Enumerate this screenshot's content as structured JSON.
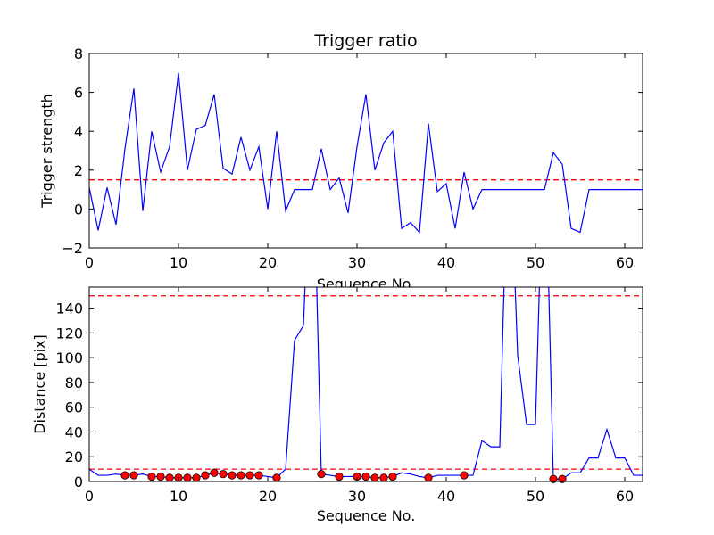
{
  "chart_data": [
    {
      "type": "line",
      "title": "Trigger ratio",
      "xlabel": "Sequence No.",
      "ylabel": "Trigger strength",
      "xlim": [
        0,
        62
      ],
      "ylim": [
        -2,
        8
      ],
      "xticks": [
        0,
        10,
        20,
        30,
        40,
        50,
        60
      ],
      "yticks": [
        -2,
        0,
        2,
        4,
        6,
        8
      ],
      "threshold": 1.5,
      "threshold_color": "#ff0000",
      "series": [
        {
          "color": "#0000ff",
          "x": [
            0,
            1,
            2,
            3,
            4,
            5,
            6,
            7,
            8,
            9,
            10,
            11,
            12,
            13,
            14,
            15,
            16,
            17,
            18,
            19,
            20,
            21,
            22,
            23,
            24,
            25,
            26,
            27,
            28,
            29,
            30,
            31,
            32,
            33,
            34,
            35,
            36,
            37,
            38,
            39,
            40,
            41,
            42,
            43,
            44,
            45,
            46,
            47,
            48,
            49,
            50,
            51,
            52,
            53,
            54,
            55,
            56,
            57,
            58,
            59,
            60,
            61,
            62
          ],
          "y": [
            1.1,
            -1.1,
            1.1,
            -0.8,
            3.1,
            6.2,
            -0.1,
            4.0,
            1.9,
            3.2,
            7.0,
            2.0,
            4.1,
            4.3,
            5.9,
            2.1,
            1.8,
            3.7,
            2.0,
            3.2,
            0.0,
            4.0,
            -0.1,
            1.0,
            1.0,
            1.0,
            3.1,
            1.0,
            1.6,
            -0.2,
            3.2,
            5.9,
            2.0,
            3.4,
            4.0,
            -1.0,
            -0.7,
            -1.2,
            4.4,
            0.9,
            1.3,
            -1.0,
            1.9,
            0.0,
            1.0,
            1.0,
            1.0,
            1.0,
            1.0,
            1.0,
            1.0,
            1.0,
            2.9,
            2.3,
            -1.0,
            -1.2,
            1.0,
            1.0,
            1.0,
            1.0,
            1.0,
            1.0,
            1.0
          ]
        }
      ]
    },
    {
      "type": "line",
      "title": "",
      "xlabel": "Sequence No.",
      "ylabel": "Distance [pix]",
      "xlim": [
        0,
        62
      ],
      "ylim": [
        0,
        157
      ],
      "xticks": [
        0,
        10,
        20,
        30,
        40,
        50,
        60
      ],
      "yticks": [
        0,
        20,
        40,
        60,
        80,
        100,
        120,
        140
      ],
      "thresholds": [
        10,
        150
      ],
      "threshold_color": "#ff0000",
      "series": [
        {
          "color": "#0000ff",
          "x": [
            0,
            1,
            2,
            3,
            4,
            5,
            6,
            7,
            8,
            9,
            10,
            11,
            12,
            13,
            14,
            15,
            16,
            17,
            18,
            19,
            20,
            21,
            22,
            23,
            24,
            25,
            26,
            27,
            28,
            29,
            30,
            31,
            32,
            33,
            34,
            35,
            36,
            37,
            38,
            39,
            40,
            41,
            42,
            43,
            44,
            45,
            46,
            47,
            48,
            49,
            50,
            51,
            52,
            53,
            54,
            55,
            56,
            57,
            58,
            59,
            60,
            61,
            62
          ],
          "y": [
            10,
            5,
            5,
            6,
            5,
            5,
            6,
            4,
            4,
            3,
            3,
            3,
            3,
            5,
            7,
            6,
            5,
            5,
            5,
            5,
            4,
            3,
            10,
            114,
            126,
            300,
            6,
            5,
            4,
            4,
            4,
            4,
            3,
            3,
            4,
            7,
            6,
            4,
            3,
            5,
            5,
            5,
            5,
            5,
            33,
            28,
            28,
            300,
            102,
            46,
            46,
            300,
            2,
            2,
            7,
            7,
            19,
            19,
            42,
            19,
            19,
            5,
            5
          ]
        }
      ],
      "markers": {
        "color": "#ff0000",
        "x": [
          4,
          5,
          7,
          8,
          9,
          10,
          11,
          12,
          13,
          14,
          15,
          16,
          17,
          18,
          19,
          21,
          26,
          28,
          30,
          31,
          32,
          33,
          34,
          38,
          42,
          52,
          53
        ],
        "y": [
          5,
          5,
          4,
          4,
          3,
          3,
          3,
          3,
          5,
          7,
          6,
          5,
          5,
          5,
          5,
          3,
          6,
          4,
          4,
          4,
          3,
          3,
          4,
          3,
          5,
          2,
          2
        ]
      }
    }
  ]
}
